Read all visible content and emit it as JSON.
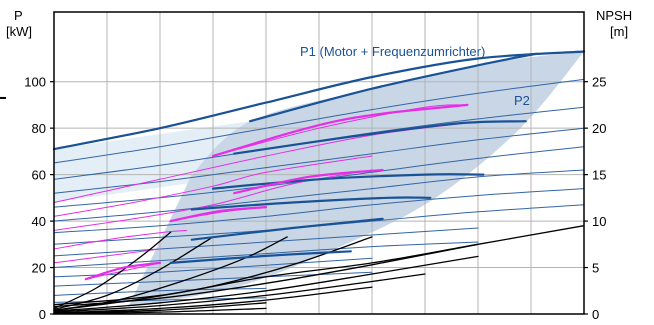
{
  "chart_data": {
    "type": "line",
    "left_axis": {
      "label_line1": "P",
      "label_line2": "[kW]",
      "ylim": [
        0,
        130
      ],
      "ticks": [
        0,
        20,
        40,
        60,
        80,
        100
      ]
    },
    "right_axis": {
      "label_line1": "NPSH",
      "label_line2": "[m]",
      "ylim": [
        0,
        32.5
      ],
      "ticks": [
        0,
        5,
        10,
        15,
        20,
        25
      ]
    },
    "xlim": [
      0,
      100
    ],
    "grid": true,
    "annotations": [
      {
        "text": "P1 (Motor + Frequenzumrichter)",
        "color": "#1a5296"
      },
      {
        "text": "P2",
        "color": "#1a5296"
      }
    ],
    "colors": {
      "p1": "#1a5296",
      "p2": "#3465a4",
      "npsh": "#000000",
      "magenta": "#e62ee6",
      "envelope": "#c8d6e6",
      "envelope_light": "#e4eef6",
      "grid": "#b4b4b4"
    },
    "series": [
      {
        "group": "p1",
        "x": [
          0,
          20,
          40,
          60,
          80,
          100
        ],
        "y": [
          71,
          80,
          91,
          102,
          110,
          113
        ]
      },
      {
        "group": "p2",
        "x": [
          0,
          20,
          40,
          60,
          80,
          100
        ],
        "y": [
          65,
          72,
          80,
          88,
          95,
          101
        ]
      },
      {
        "group": "p2",
        "x": [
          0,
          20,
          40,
          60,
          80,
          100
        ],
        "y": [
          58,
          64,
          71,
          78,
          84,
          89
        ]
      },
      {
        "group": "p2",
        "x": [
          0,
          20,
          40,
          60,
          80,
          100
        ],
        "y": [
          52,
          57,
          63,
          69,
          75,
          80
        ]
      },
      {
        "group": "p2",
        "x": [
          0,
          20,
          40,
          60,
          80,
          100
        ],
        "y": [
          46,
          50,
          55,
          61,
          67,
          72
        ]
      },
      {
        "group": "p2",
        "x": [
          0,
          20,
          40,
          60,
          80,
          100
        ],
        "y": [
          40,
          44,
          49,
          54,
          59,
          62
        ]
      },
      {
        "group": "p2",
        "x": [
          0,
          20,
          40,
          60,
          80,
          100
        ],
        "y": [
          35,
          38,
          42,
          47,
          51,
          54
        ]
      },
      {
        "group": "p2",
        "x": [
          0,
          20,
          40,
          60,
          80,
          100
        ],
        "y": [
          30,
          33,
          36,
          40,
          44,
          47
        ]
      },
      {
        "group": "p2",
        "x": [
          0,
          20,
          40,
          60,
          80
        ],
        "y": [
          25,
          28,
          31,
          34,
          37
        ]
      },
      {
        "group": "p2",
        "x": [
          0,
          20,
          40,
          60,
          80
        ],
        "y": [
          20,
          23,
          26,
          29,
          31
        ]
      },
      {
        "group": "p2",
        "x": [
          0,
          20,
          40,
          60
        ],
        "y": [
          16,
          18,
          21,
          24
        ]
      },
      {
        "group": "p2",
        "x": [
          0,
          20,
          40,
          60
        ],
        "y": [
          12,
          14,
          16,
          18
        ]
      },
      {
        "group": "p2",
        "x": [
          0,
          20,
          40
        ],
        "y": [
          8,
          10,
          11
        ]
      },
      {
        "group": "p2",
        "x": [
          0,
          20,
          40
        ],
        "y": [
          5,
          6,
          7
        ]
      },
      {
        "group": "p1",
        "x": [
          37,
          60,
          82,
          91
        ],
        "y": [
          83,
          97,
          108,
          112
        ]
      },
      {
        "group": "p1",
        "x": [
          34,
          55,
          76,
          89
        ],
        "y": [
          69,
          76,
          82,
          83
        ]
      },
      {
        "group": "p1",
        "x": [
          30,
          50,
          70,
          81
        ],
        "y": [
          54,
          58,
          60,
          60
        ]
      },
      {
        "group": "p1",
        "x": [
          26,
          45,
          63,
          71
        ],
        "y": [
          45,
          48,
          50,
          50
        ]
      },
      {
        "group": "p1",
        "x": [
          26,
          45,
          62
        ],
        "y": [
          32,
          37,
          41
        ]
      },
      {
        "group": "p1",
        "x": [
          22,
          40,
          56
        ],
        "y": [
          22,
          25,
          27
        ]
      },
      {
        "group": "magenta",
        "x": [
          30,
          50,
          70,
          78
        ],
        "y": [
          68,
          80,
          89,
          90
        ]
      },
      {
        "group": "magenta",
        "x": [
          0,
          20,
          40,
          60,
          77
        ],
        "y": [
          48,
          58,
          68,
          77,
          82
        ]
      },
      {
        "group": "magenta",
        "x": [
          0,
          15,
          30,
          40,
          60
        ],
        "y": [
          42,
          48,
          55,
          61,
          68
        ]
      },
      {
        "group": "magenta",
        "x": [
          0,
          15,
          30,
          45,
          60
        ],
        "y": [
          36,
          41,
          47,
          56,
          62
        ]
      },
      {
        "group": "magenta",
        "x": [
          22,
          32,
          40
        ],
        "y": [
          40,
          44,
          46
        ]
      },
      {
        "group": "magenta",
        "x": [
          0,
          10,
          20,
          25
        ],
        "y": [
          28,
          32,
          35,
          36
        ]
      },
      {
        "group": "magenta",
        "x": [
          0,
          10,
          20
        ],
        "y": [
          22,
          25,
          28
        ]
      },
      {
        "group": "magenta",
        "x": [
          6,
          12,
          20
        ],
        "y": [
          15,
          18,
          22
        ]
      },
      {
        "group": "npsh",
        "x": [
          0,
          20,
          40,
          60,
          80,
          100
        ],
        "y": [
          1,
          2,
          4,
          5.5,
          7.5,
          9.5
        ]
      },
      {
        "group": "npsh",
        "x": [
          0,
          20,
          40,
          60,
          80
        ],
        "y": [
          0.8,
          1.7,
          3.3,
          5.3,
          7.5
        ]
      },
      {
        "group": "npsh",
        "x": [
          0,
          15,
          30,
          45,
          60
        ],
        "y": [
          0.4,
          1.5,
          3,
          5.3,
          8.3
        ]
      },
      {
        "group": "npsh",
        "x": [
          0,
          12,
          24,
          36,
          44
        ],
        "y": [
          0.4,
          1.5,
          3.5,
          6,
          8.3
        ]
      },
      {
        "group": "npsh",
        "x": [
          0,
          10,
          20,
          30
        ],
        "y": [
          0.5,
          2,
          4.8,
          8.3
        ]
      },
      {
        "group": "npsh",
        "x": [
          0,
          8,
          16,
          22
        ],
        "y": [
          0.6,
          2.8,
          6,
          8.8
        ]
      },
      {
        "group": "npsh",
        "x": [
          0,
          20,
          40,
          60,
          80
        ],
        "y": [
          0.3,
          1.2,
          2.5,
          4.3,
          6.2
        ]
      },
      {
        "group": "npsh",
        "x": [
          0,
          20,
          40,
          60,
          70
        ],
        "y": [
          0.2,
          0.9,
          2,
          3.5,
          4.3
        ]
      },
      {
        "group": "npsh",
        "x": [
          0,
          20,
          40,
          60
        ],
        "y": [
          0.1,
          0.6,
          1.5,
          2.9
        ]
      },
      {
        "group": "npsh",
        "x": [
          0,
          20,
          40
        ],
        "y": [
          0.1,
          0.4,
          1.2
        ]
      },
      {
        "group": "npsh",
        "x": [
          0,
          20,
          40
        ],
        "y": [
          0.05,
          0.2,
          0.6
        ]
      },
      {
        "group": "npsh",
        "x": [
          0,
          10,
          20
        ],
        "y": [
          0,
          0.2,
          0.4
        ]
      }
    ]
  }
}
